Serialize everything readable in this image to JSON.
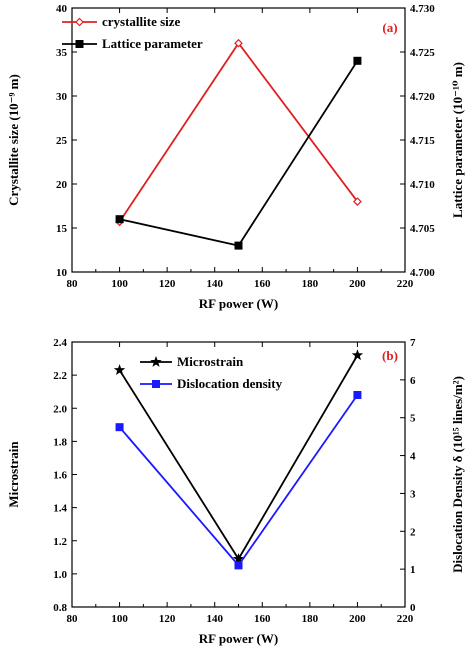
{
  "chart_data": [
    {
      "type": "line",
      "panel_label": "(a)",
      "x": [
        100,
        150,
        200
      ],
      "xlabel": "RF power (W)",
      "xlim": [
        80,
        220
      ],
      "xticks": [
        "80",
        "100",
        "120",
        "140",
        "160",
        "180",
        "200",
        "220"
      ],
      "ylabel": "Crystallite size (10⁻⁹ m)",
      "ylim": [
        10,
        40
      ],
      "yticks": [
        "10",
        "15",
        "20",
        "25",
        "30",
        "35",
        "40"
      ],
      "y2label": "Lattice parameter (10⁻¹⁰ m)",
      "y2lim": [
        4.7,
        4.73
      ],
      "y2ticks": [
        "4.700",
        "4.705",
        "4.710",
        "4.715",
        "4.720",
        "4.725",
        "4.730"
      ],
      "legend_position": "top-left",
      "series": [
        {
          "name": "crystallite size",
          "axis": "left",
          "values": [
            15.7,
            36.0,
            18.0
          ],
          "color": "#e02020",
          "marker": "diamond-open"
        },
        {
          "name": "Lattice parameter",
          "axis": "right",
          "values": [
            4.706,
            4.703,
            4.724
          ],
          "color": "#000000",
          "marker": "square"
        }
      ]
    },
    {
      "type": "line",
      "panel_label": "(b)",
      "x": [
        100,
        150,
        200
      ],
      "xlabel": "RF power (W)",
      "xlim": [
        80,
        220
      ],
      "xticks": [
        "80",
        "100",
        "120",
        "140",
        "160",
        "180",
        "200",
        "220"
      ],
      "ylabel": "Microstrain",
      "ylim": [
        0.8,
        2.4
      ],
      "yticks": [
        "0.8",
        "1.0",
        "1.2",
        "1.4",
        "1.6",
        "1.8",
        "2.0",
        "2.2",
        "2.4"
      ],
      "y2label": "Dislocation Density δ (10¹⁵ lines/m²)",
      "y2lim": [
        0,
        7
      ],
      "y2ticks": [
        "0",
        "1",
        "2",
        "3",
        "4",
        "5",
        "6",
        "7"
      ],
      "legend_position": "top-center",
      "series": [
        {
          "name": "Microstrain",
          "axis": "left",
          "values": [
            2.23,
            1.09,
            2.32
          ],
          "color": "#000000",
          "marker": "star"
        },
        {
          "name": "Dislocation density",
          "axis": "right",
          "values": [
            4.75,
            1.1,
            5.6
          ],
          "color": "#1a1aff",
          "marker": "square"
        }
      ]
    }
  ]
}
